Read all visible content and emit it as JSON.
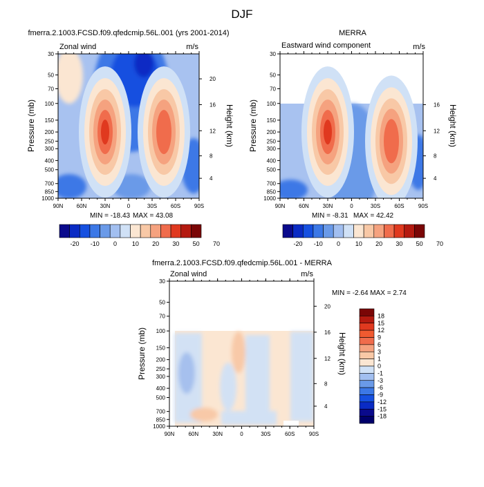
{
  "page": {
    "title": "DJF"
  },
  "chart_data": [
    {
      "type": "heatmap",
      "title": "fmerra.2.1003.FCSD.f09.qfedcmip.56L.001 (yrs 2001-2014)",
      "left_label": "Zonal wind",
      "units": "m/s",
      "ylabel": "Pressure (mb)",
      "ylabel_right": "Height (km)",
      "pressure_ticks": [
        "30",
        "50",
        "70",
        "100",
        "150",
        "200",
        "250",
        "300",
        "400",
        "500",
        "700",
        "850",
        "1000"
      ],
      "height_ticks": [
        "20",
        "16",
        "12",
        "8",
        "4"
      ],
      "lat_ticks": [
        "90N",
        "60N",
        "30N",
        "0",
        "30S",
        "60S",
        "90S"
      ],
      "ylim_mb": [
        1000,
        30
      ],
      "xlim_lat": [
        90,
        -90
      ],
      "min_label": "MIN = -18.43",
      "max_label": "MAX = 43.08",
      "min": -18.43,
      "max": 43.08,
      "data_top_mb": 30,
      "features": [
        {
          "kind": "westerly_jet",
          "lat": 30,
          "pressure_mb": 200,
          "peak": 43.08
        },
        {
          "kind": "westerly_jet",
          "lat": -45,
          "pressure_mb": 200,
          "peak": 30
        },
        {
          "kind": "easterly_core",
          "lat": 15,
          "pressure_mb": 30,
          "peak": -18.43
        }
      ]
    },
    {
      "type": "heatmap",
      "title": "MERRA",
      "left_label": "Eastward wind component",
      "units": "m/s",
      "ylabel": "Pressure (mb)",
      "ylabel_right": "Height (km)",
      "pressure_ticks": [
        "30",
        "50",
        "70",
        "100",
        "150",
        "200",
        "250",
        "300",
        "400",
        "500",
        "700",
        "850",
        "1000"
      ],
      "height_ticks": [
        "16",
        "12",
        "8",
        "4"
      ],
      "lat_ticks": [
        "90N",
        "60N",
        "30N",
        "0",
        "30S",
        "60S",
        "90S"
      ],
      "ylim_mb": [
        1000,
        30
      ],
      "xlim_lat": [
        90,
        -90
      ],
      "min_label": "MIN = -8.31",
      "max_label": "MAX = 42.42",
      "min": -8.31,
      "max": 42.42,
      "data_top_mb": 100,
      "features": [
        {
          "kind": "westerly_jet",
          "lat": 30,
          "pressure_mb": 200,
          "peak": 42.42
        },
        {
          "kind": "westerly_jet",
          "lat": -50,
          "pressure_mb": 250,
          "peak": 30
        }
      ]
    },
    {
      "type": "heatmap",
      "title": "fmerra.2.1003.FCSD.f09.qfedcmip.56L.001 - MERRA",
      "left_label": "Zonal wind",
      "units": "m/s",
      "ylabel": "Pressure (mb)",
      "ylabel_right": "Height (km)",
      "pressure_ticks": [
        "30",
        "50",
        "70",
        "100",
        "150",
        "200",
        "250",
        "300",
        "400",
        "500",
        "700",
        "850",
        "1000"
      ],
      "height_ticks": [
        "20",
        "16",
        "12",
        "8",
        "4"
      ],
      "lat_ticks": [
        "90N",
        "60N",
        "30N",
        "0",
        "30S",
        "60S",
        "90S"
      ],
      "ylim_mb": [
        1000,
        30
      ],
      "xlim_lat": [
        90,
        -90
      ],
      "minmax_label": "MIN =  -2.64  MAX =   2.74",
      "min": -2.64,
      "max": 2.74,
      "data_top_mb": 100
    }
  ],
  "colorbar_abs": {
    "labels": [
      "-20",
      "-10",
      "0",
      "10",
      "20",
      "30",
      "50",
      "70"
    ],
    "colors": [
      "#0a0a8c",
      "#0a2bc4",
      "#1650e0",
      "#3c78e6",
      "#6a9ae8",
      "#a2bff0",
      "#d0e1f6",
      "#fbe6d2",
      "#f8c8a6",
      "#f5a27f",
      "#f06c4c",
      "#e0391f",
      "#b41a10",
      "#7a0606"
    ]
  },
  "colorbar_diff": {
    "labels": [
      "18",
      "15",
      "12",
      "9",
      "6",
      "3",
      "1",
      "0",
      "-1",
      "-3",
      "-6",
      "-9",
      "-12",
      "-15",
      "-18"
    ],
    "colors": [
      "#7a0606",
      "#b41a10",
      "#e0391f",
      "#f05a30",
      "#f06c4c",
      "#f5a27f",
      "#f8c8a6",
      "#fbe6d2",
      "#d0e1f6",
      "#a2bff0",
      "#6a9ae8",
      "#3c78e6",
      "#1650e0",
      "#0a2bc4",
      "#0a0a8c",
      "#00006a"
    ]
  }
}
